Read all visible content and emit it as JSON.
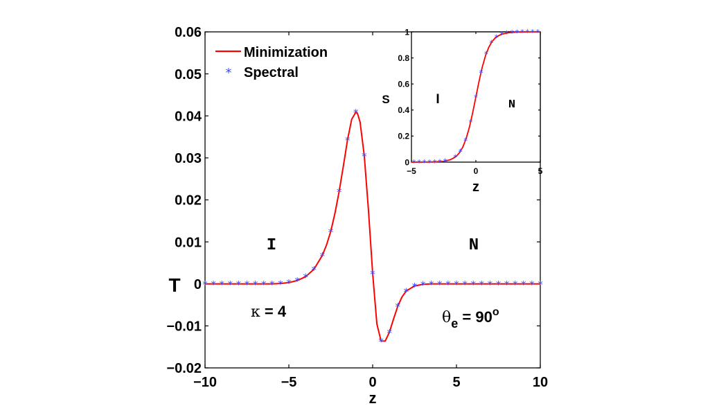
{
  "colors": {
    "line": "#ff0000",
    "marker": "#3a4bff",
    "axis": "#000000"
  },
  "chart_data": [
    {
      "type": "line",
      "name": "main",
      "xlabel": "z",
      "ylabel": "T",
      "xlim": [
        -10,
        10
      ],
      "ylim": [
        -0.02,
        0.06
      ],
      "xticks": [
        -10,
        -5,
        0,
        5,
        10
      ],
      "xtick_labels": [
        "−10",
        "−5",
        "0",
        "5",
        "10"
      ],
      "yticks": [
        -0.02,
        -0.01,
        0,
        0.01,
        0.02,
        0.03,
        0.04,
        0.05,
        0.06
      ],
      "ytick_labels": [
        "−0.02",
        "−0.01",
        "0",
        "0.01",
        "0.02",
        "0.03",
        "0.04",
        "0.05",
        "0.06"
      ],
      "legend": {
        "placement": "top-left",
        "entries": [
          {
            "label": "Minimization",
            "style": "red-line"
          },
          {
            "label": "Spectral",
            "style": "blue-asterisk"
          }
        ]
      },
      "series": [
        {
          "name": "Minimization",
          "kind": "line",
          "x": [
            -10,
            -9,
            -8,
            -7,
            -6,
            -5.5,
            -5,
            -4.5,
            -4,
            -3.5,
            -3,
            -2.75,
            -2.5,
            -2.25,
            -2,
            -1.75,
            -1.5,
            -1.25,
            -1,
            -0.9,
            -0.75,
            -0.5,
            -0.25,
            0,
            0.25,
            0.5,
            0.75,
            1,
            1.25,
            1.5,
            1.75,
            2,
            2.5,
            3,
            3.5,
            4,
            5,
            6,
            7,
            8,
            9,
            10
          ],
          "y": [
            0,
            0,
            0,
            0,
            0,
            0.0001,
            0.0003,
            0.0008,
            0.0017,
            0.0035,
            0.0068,
            0.0093,
            0.0125,
            0.0168,
            0.022,
            0.028,
            0.0343,
            0.0392,
            0.0409,
            0.0405,
            0.0385,
            0.0305,
            0.0175,
            0.0025,
            -0.0095,
            -0.0136,
            -0.0136,
            -0.0115,
            -0.0083,
            -0.0053,
            -0.0031,
            -0.0017,
            -0.0005,
            -0.0001,
            0,
            0,
            0,
            0,
            0,
            0,
            0,
            0
          ]
        },
        {
          "name": "Spectral",
          "kind": "markers",
          "x": [
            -10,
            -9.5,
            -9,
            -8.5,
            -8,
            -7.5,
            -7,
            -6.5,
            -6,
            -5.5,
            -5,
            -4.5,
            -4,
            -3.5,
            -3,
            -2.5,
            -2,
            -1.5,
            -1,
            -0.5,
            0,
            0.5,
            1,
            1.5,
            2,
            2.5,
            3,
            3.5,
            4,
            4.5,
            5,
            5.5,
            6,
            6.5,
            7,
            7.5,
            8,
            8.5,
            9,
            9.5,
            10
          ],
          "y": [
            0,
            0,
            0,
            0,
            0,
            0,
            0,
            0,
            0,
            0.0001,
            0.0003,
            0.0008,
            0.0017,
            0.0035,
            0.0068,
            0.0125,
            0.022,
            0.0343,
            0.0409,
            0.0305,
            0.0025,
            -0.0136,
            -0.0115,
            -0.0053,
            -0.0017,
            -0.0005,
            -0.0001,
            0,
            0,
            0,
            0,
            0,
            0,
            0,
            0,
            0,
            0,
            0,
            0,
            0,
            0
          ]
        }
      ],
      "annotations": {
        "left_phase": "I",
        "right_phase": "N",
        "kappa_symbol": "κ",
        "kappa_rest": " = 4",
        "theta_symbol": "θ",
        "theta_sub": "e",
        "theta_rest": " = 90",
        "theta_sup": "o"
      }
    },
    {
      "type": "line",
      "name": "inset",
      "xlabel": "z",
      "ylabel": "S",
      "xlim": [
        -5,
        5
      ],
      "ylim": [
        0,
        1
      ],
      "xticks": [
        -5,
        0,
        5
      ],
      "xtick_labels": [
        "−5",
        "0",
        "5"
      ],
      "yticks": [
        0,
        0.2,
        0.4,
        0.6,
        0.8,
        1
      ],
      "ytick_labels": [
        "0",
        "0.2",
        "0.4",
        "0.6",
        "0.8",
        "1"
      ],
      "series": [
        {
          "name": "Minimization",
          "kind": "line",
          "x": [
            -5,
            -4.5,
            -4,
            -3.5,
            -3,
            -2.5,
            -2,
            -1.75,
            -1.5,
            -1.25,
            -1,
            -0.75,
            -0.5,
            -0.25,
            0,
            0.25,
            0.5,
            0.75,
            1,
            1.25,
            1.5,
            1.75,
            2,
            2.5,
            3,
            3.5,
            4,
            4.5,
            5
          ],
          "y": [
            0.0002,
            0.0004,
            0.0008,
            0.0015,
            0.003,
            0.006,
            0.018,
            0.03,
            0.047,
            0.075,
            0.119,
            0.182,
            0.269,
            0.378,
            0.5,
            0.622,
            0.731,
            0.818,
            0.881,
            0.925,
            0.953,
            0.97,
            0.982,
            0.993,
            0.997,
            0.999,
            1,
            1,
            1
          ]
        },
        {
          "name": "Spectral",
          "kind": "markers",
          "x": [
            -4.8,
            -4.4,
            -4,
            -3.6,
            -3.2,
            -2.8,
            -2.4,
            -1.6,
            -1.2,
            -0.8,
            -0.4,
            0,
            0.4,
            0.8,
            1.2,
            1.6,
            2,
            2.4,
            2.8,
            3.2,
            3.6,
            4,
            4.4,
            4.8
          ],
          "y": [
            0,
            0,
            0,
            0,
            0.001,
            0.002,
            0.007,
            0.039,
            0.083,
            0.168,
            0.31,
            0.5,
            0.69,
            0.832,
            0.917,
            0.961,
            0.982,
            0.992,
            0.996,
            0.998,
            0.999,
            1,
            1,
            1
          ]
        }
      ],
      "annotations": {
        "left_phase": "I",
        "right_phase": "N"
      }
    }
  ]
}
